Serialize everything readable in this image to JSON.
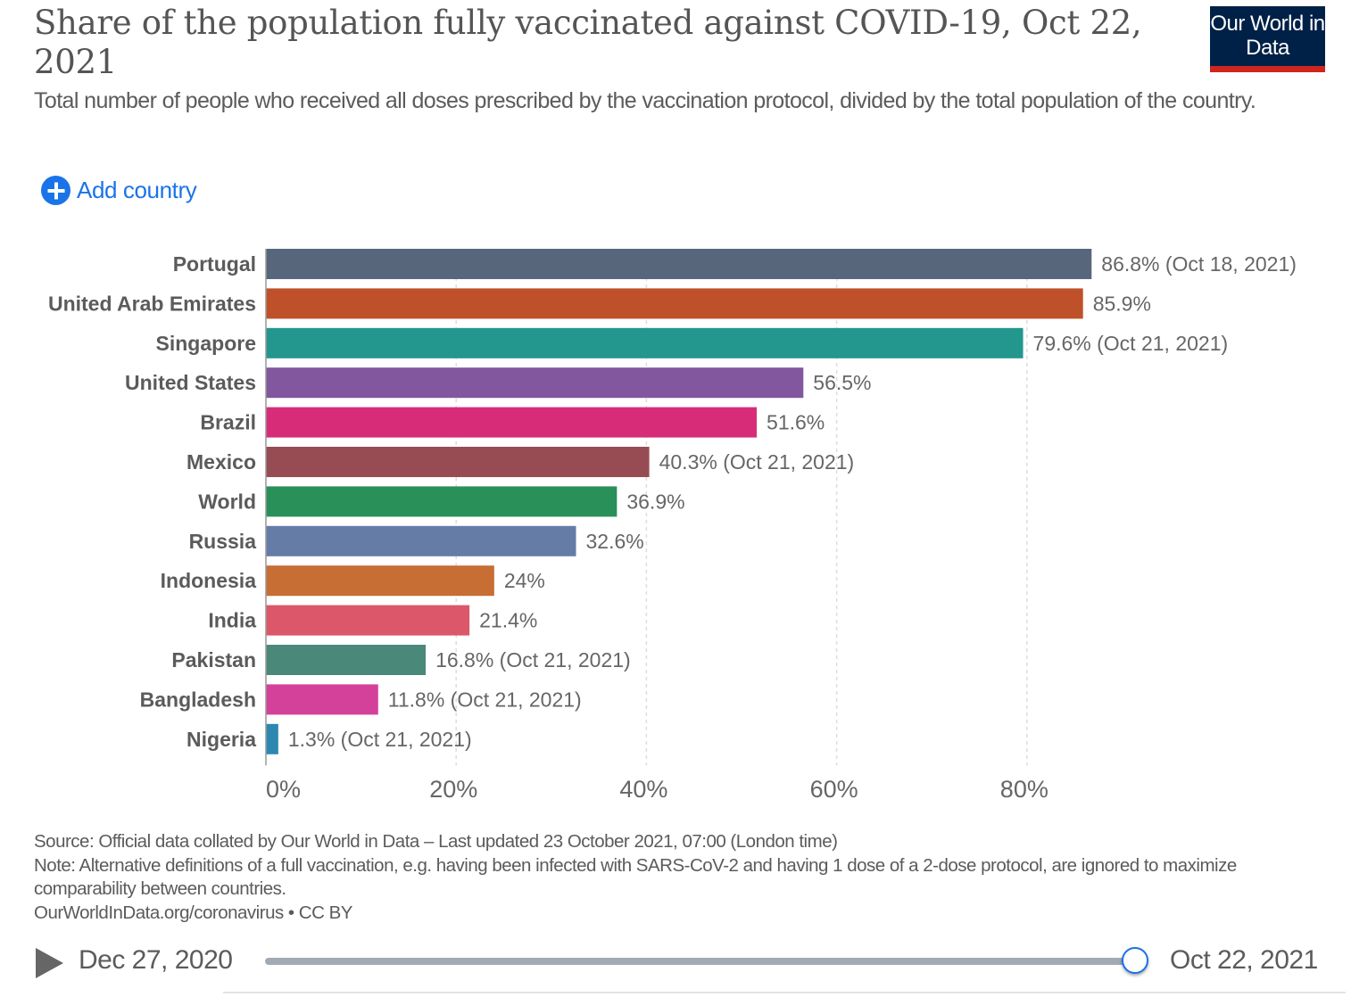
{
  "header": {
    "title": "Share of the population fully vaccinated against COVID-19, Oct 22, 2021",
    "subtitle": "Total number of people who received all doses prescribed by the vaccination protocol, divided by the total population of the country.",
    "logo_text": "Our World in Data"
  },
  "controls": {
    "add_country_label": "Add country",
    "add_icon": "plus-circle-icon"
  },
  "colors": {
    "accent": "#1a73e8",
    "logo_bg": "#002147",
    "logo_bar": "#ce261e",
    "grid": "#dddddd",
    "text": "#5b5b5b"
  },
  "chart_data": {
    "type": "bar",
    "orientation": "horizontal",
    "title": "Share of the population fully vaccinated against COVID-19, Oct 22, 2021",
    "xlabel": "",
    "ylabel": "",
    "xlim": [
      0,
      90
    ],
    "x_ticks": [
      0,
      20,
      40,
      60,
      80
    ],
    "x_tick_labels": [
      "0%",
      "20%",
      "40%",
      "60%",
      "80%"
    ],
    "grid": "vertical dashed",
    "categories": [
      "Portugal",
      "United Arab Emirates",
      "Singapore",
      "United States",
      "Brazil",
      "Mexico",
      "World",
      "Russia",
      "Indonesia",
      "India",
      "Pakistan",
      "Bangladesh",
      "Nigeria"
    ],
    "values": [
      86.8,
      85.9,
      79.6,
      56.5,
      51.6,
      40.3,
      36.9,
      32.6,
      24,
      21.4,
      16.8,
      11.8,
      1.3
    ],
    "value_labels": [
      "86.8% (Oct 18, 2021)",
      "85.9%",
      "79.6% (Oct 21, 2021)",
      "56.5%",
      "51.6%",
      "40.3% (Oct 21, 2021)",
      "36.9%",
      "32.6%",
      "24%",
      "21.4%",
      "16.8% (Oct 21, 2021)",
      "11.8% (Oct 21, 2021)",
      "1.3% (Oct 21, 2021)"
    ],
    "colors": [
      "#58667c",
      "#be5129",
      "#23968d",
      "#82579d",
      "#d72d79",
      "#974c53",
      "#29905a",
      "#657ca7",
      "#c76e35",
      "#dc5769",
      "#4a887a",
      "#d4419a",
      "#2d88b1"
    ]
  },
  "footer": {
    "source": "Source: Official data collated by Our World in Data – Last updated 23 October 2021, 07:00 (London time)",
    "note": "Note: Alternative definitions of a full vaccination, e.g. having been infected with SARS-CoV-2 and having 1 dose of a 2-dose protocol, are ignored to maximize comparability between countries.",
    "license": "OurWorldInData.org/coronavirus • CC BY"
  },
  "timeline": {
    "start_date": "Dec 27, 2020",
    "end_date": "Oct 22, 2021",
    "position_fraction": 1.0,
    "play_icon": "play-icon"
  }
}
